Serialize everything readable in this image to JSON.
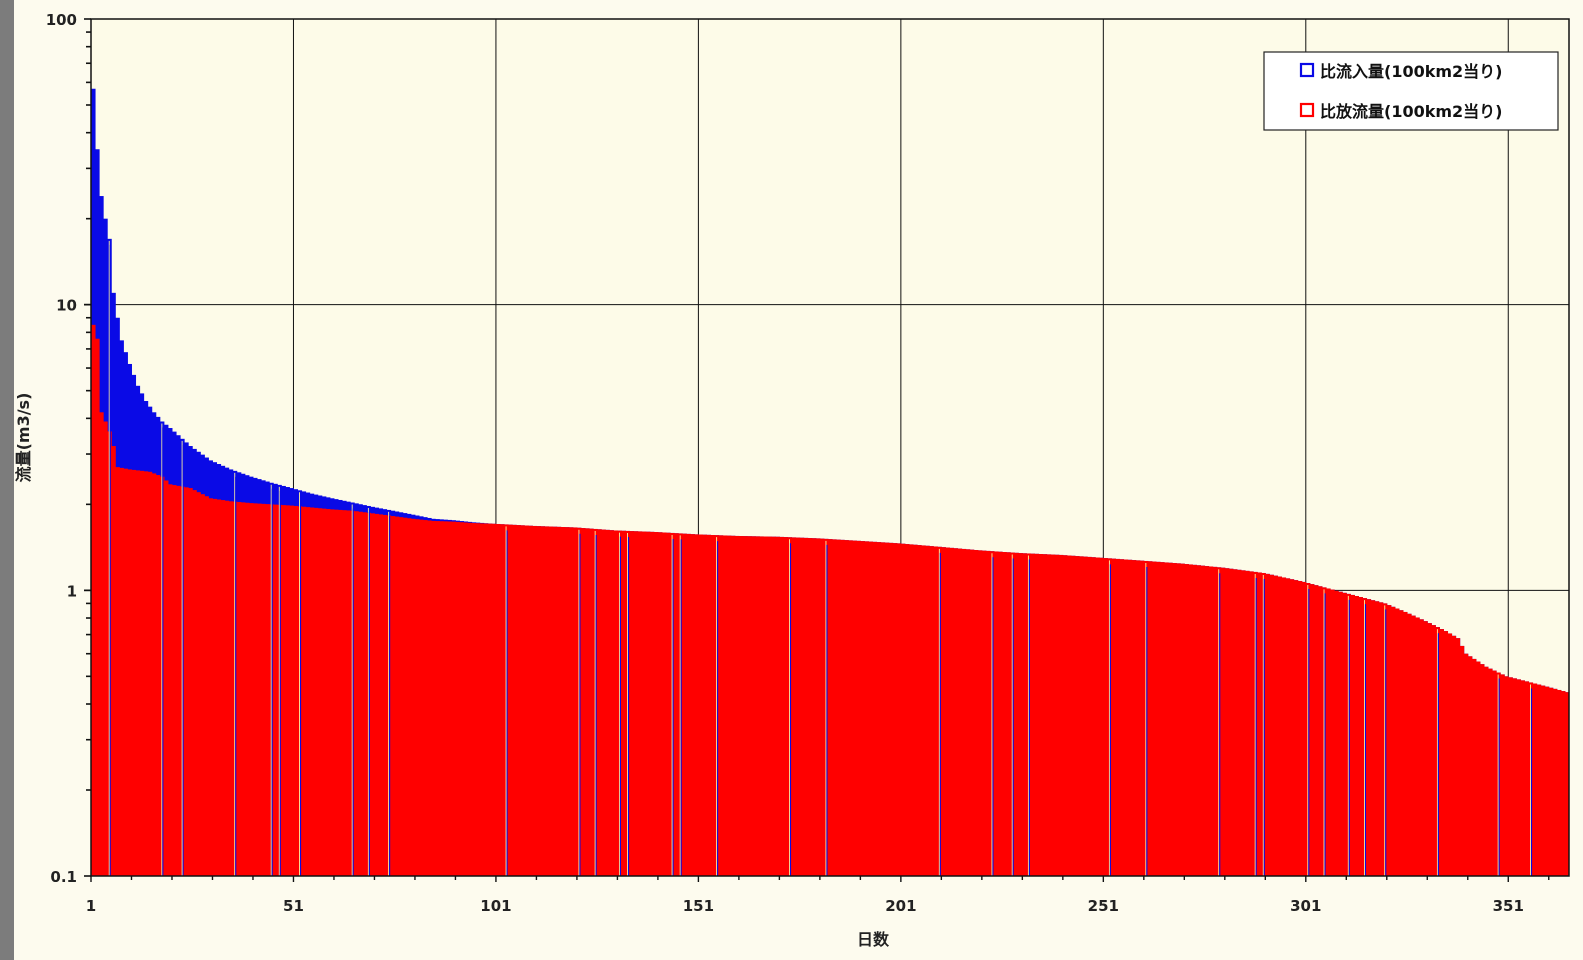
{
  "chart_data": {
    "type": "bar",
    "title": "",
    "xlabel": "日数",
    "ylabel": "流量(m3/s)",
    "y_scale": "log",
    "ylim": [
      0.1,
      100
    ],
    "xlim": [
      1,
      365
    ],
    "grid": true,
    "legend_placement": "top-right",
    "y_ticks": [
      {
        "value": 100,
        "label": "100"
      },
      {
        "value": 10,
        "label": "10"
      },
      {
        "value": 1,
        "label": "1"
      },
      {
        "value": 0.1,
        "label": "0.1"
      }
    ],
    "x_ticks": [
      {
        "value": 1,
        "label": "1"
      },
      {
        "value": 51,
        "label": "51"
      },
      {
        "value": 101,
        "label": "101"
      },
      {
        "value": 151,
        "label": "151"
      },
      {
        "value": 201,
        "label": "201"
      },
      {
        "value": 251,
        "label": "251"
      },
      {
        "value": 301,
        "label": "301"
      },
      {
        "value": 351,
        "label": "351"
      }
    ],
    "series": [
      {
        "name": "比流入量(100km2当り)",
        "color": "#0a0ae6",
        "curve": [
          [
            1,
            57
          ],
          [
            2,
            35
          ],
          [
            3,
            24
          ],
          [
            4,
            20
          ],
          [
            5,
            17
          ],
          [
            6,
            11
          ],
          [
            7,
            9
          ],
          [
            8,
            7.5
          ],
          [
            10,
            6.2
          ],
          [
            12,
            5.2
          ],
          [
            14,
            4.6
          ],
          [
            16,
            4.2
          ],
          [
            18,
            3.9
          ],
          [
            20,
            3.7
          ],
          [
            25,
            3.2
          ],
          [
            30,
            2.85
          ],
          [
            35,
            2.65
          ],
          [
            40,
            2.5
          ],
          [
            45,
            2.38
          ],
          [
            50,
            2.28
          ],
          [
            55,
            2.18
          ],
          [
            60,
            2.1
          ],
          [
            65,
            2.03
          ],
          [
            70,
            1.96
          ],
          [
            75,
            1.9
          ],
          [
            80,
            1.84
          ],
          [
            85,
            1.78
          ],
          [
            90,
            1.76
          ],
          [
            95,
            1.73
          ],
          [
            100,
            1.71
          ],
          [
            110,
            1.68
          ],
          [
            120,
            1.66
          ],
          [
            130,
            1.62
          ],
          [
            140,
            1.6
          ],
          [
            150,
            1.57
          ],
          [
            160,
            1.55
          ],
          [
            170,
            1.54
          ],
          [
            180,
            1.52
          ],
          [
            190,
            1.49
          ],
          [
            200,
            1.46
          ],
          [
            210,
            1.42
          ],
          [
            220,
            1.38
          ],
          [
            230,
            1.35
          ],
          [
            240,
            1.33
          ],
          [
            250,
            1.3
          ],
          [
            260,
            1.27
          ],
          [
            270,
            1.24
          ],
          [
            280,
            1.2
          ],
          [
            290,
            1.15
          ],
          [
            300,
            1.07
          ],
          [
            310,
            0.98
          ],
          [
            320,
            0.9
          ],
          [
            325,
            0.84
          ],
          [
            330,
            0.78
          ],
          [
            335,
            0.72
          ],
          [
            338,
            0.68
          ],
          [
            340,
            0.6
          ],
          [
            345,
            0.54
          ],
          [
            350,
            0.5
          ],
          [
            355,
            0.48
          ],
          [
            360,
            0.46
          ],
          [
            365,
            0.44
          ]
        ]
      },
      {
        "name": "比放流量(100km2当り)",
        "color": "#ff0000",
        "curve": [
          [
            1,
            8.5
          ],
          [
            2,
            7.6
          ],
          [
            3,
            4.2
          ],
          [
            4,
            3.9
          ],
          [
            5,
            3.6
          ],
          [
            6,
            3.2
          ],
          [
            7,
            2.7
          ],
          [
            10,
            2.65
          ],
          [
            15,
            2.6
          ],
          [
            18,
            2.5
          ],
          [
            20,
            2.35
          ],
          [
            25,
            2.28
          ],
          [
            30,
            2.1
          ],
          [
            35,
            2.05
          ],
          [
            40,
            2.02
          ],
          [
            45,
            2.0
          ],
          [
            50,
            1.98
          ],
          [
            55,
            1.95
          ],
          [
            60,
            1.92
          ],
          [
            65,
            1.9
          ],
          [
            70,
            1.86
          ],
          [
            75,
            1.82
          ],
          [
            80,
            1.78
          ],
          [
            85,
            1.75
          ],
          [
            90,
            1.74
          ],
          [
            95,
            1.72
          ],
          [
            100,
            1.71
          ],
          [
            110,
            1.68
          ],
          [
            120,
            1.66
          ],
          [
            130,
            1.62
          ],
          [
            140,
            1.6
          ],
          [
            150,
            1.57
          ],
          [
            160,
            1.55
          ],
          [
            170,
            1.54
          ],
          [
            180,
            1.52
          ],
          [
            190,
            1.49
          ],
          [
            200,
            1.46
          ],
          [
            210,
            1.42
          ],
          [
            220,
            1.38
          ],
          [
            230,
            1.35
          ],
          [
            240,
            1.33
          ],
          [
            250,
            1.3
          ],
          [
            260,
            1.27
          ],
          [
            270,
            1.24
          ],
          [
            280,
            1.2
          ],
          [
            290,
            1.15
          ],
          [
            300,
            1.07
          ],
          [
            310,
            0.98
          ],
          [
            320,
            0.9
          ],
          [
            325,
            0.84
          ],
          [
            330,
            0.78
          ],
          [
            335,
            0.72
          ],
          [
            338,
            0.68
          ],
          [
            340,
            0.6
          ],
          [
            345,
            0.54
          ],
          [
            350,
            0.5
          ],
          [
            355,
            0.48
          ],
          [
            360,
            0.46
          ],
          [
            365,
            0.44
          ]
        ]
      }
    ],
    "gap_days": [
      5,
      18,
      23,
      36,
      45,
      47,
      52,
      65,
      69,
      74,
      103,
      121,
      125,
      131,
      133,
      144,
      146,
      155,
      173,
      182,
      210,
      223,
      228,
      232,
      252,
      261,
      279,
      288,
      290,
      301,
      305,
      311,
      315,
      320,
      333,
      348,
      356
    ]
  }
}
